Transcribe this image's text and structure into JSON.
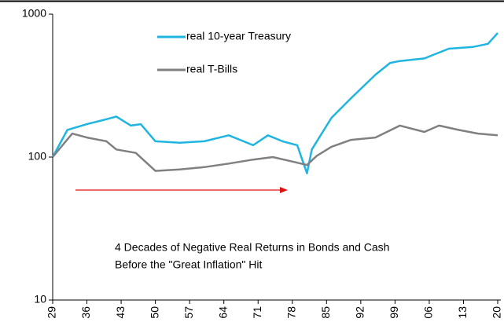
{
  "chart_data": {
    "type": "line",
    "log_y": true,
    "annotation": [
      "4 Decades of Negative Real Returns in Bonds and Cash",
      "Before the \"Great Inflation\" Hit"
    ],
    "series": [
      {
        "name": "real 10-year Treasury",
        "color": "#1fb5e0",
        "x": [
          1929,
          1932,
          1936,
          1940,
          1942,
          1945,
          1947,
          1950,
          1955,
          1960,
          1965,
          1970,
          1973,
          1976,
          1979,
          1981,
          1982,
          1984,
          1986,
          1990,
          1995,
          1998,
          2000,
          2005,
          2010,
          2015,
          2018,
          2020
        ],
        "values": [
          100,
          155,
          170,
          184,
          192,
          166,
          170,
          129,
          126,
          129,
          142,
          121,
          142,
          129,
          121,
          77,
          113,
          146,
          188,
          258,
          377,
          456,
          470,
          490,
          573,
          590,
          620,
          738
        ]
      },
      {
        "name": "real T-Bills",
        "color": "#808080",
        "x": [
          1929,
          1933,
          1936,
          1940,
          1942,
          1946,
          1950,
          1955,
          1960,
          1965,
          1970,
          1974,
          1978,
          1981,
          1983,
          1986,
          1990,
          1995,
          2000,
          2005,
          2008,
          2012,
          2016,
          2020
        ],
        "values": [
          100,
          146,
          137,
          129,
          113,
          107,
          80,
          82,
          85,
          90,
          96,
          100,
          93,
          88,
          102,
          118,
          132,
          137,
          166,
          150,
          166,
          155,
          146,
          142
        ]
      }
    ],
    "xlim": [
      1929,
      2020
    ],
    "xticks": [
      {
        "value": 1929,
        "label": "29"
      },
      {
        "value": 1936,
        "label": "36"
      },
      {
        "value": 1943,
        "label": "43"
      },
      {
        "value": 1950,
        "label": "50"
      },
      {
        "value": 1957,
        "label": "57"
      },
      {
        "value": 1964,
        "label": "64"
      },
      {
        "value": 1971,
        "label": "71"
      },
      {
        "value": 1978,
        "label": "78"
      },
      {
        "value": 1985,
        "label": "85"
      },
      {
        "value": 1992,
        "label": "92"
      },
      {
        "value": 1999,
        "label": "99"
      },
      {
        "value": 2006,
        "label": "06"
      },
      {
        "value": 2013,
        "label": "13"
      },
      {
        "value": 2020,
        "label": "20"
      }
    ],
    "ylim": [
      10,
      1000
    ],
    "yticks": [
      10,
      100,
      1000
    ]
  }
}
